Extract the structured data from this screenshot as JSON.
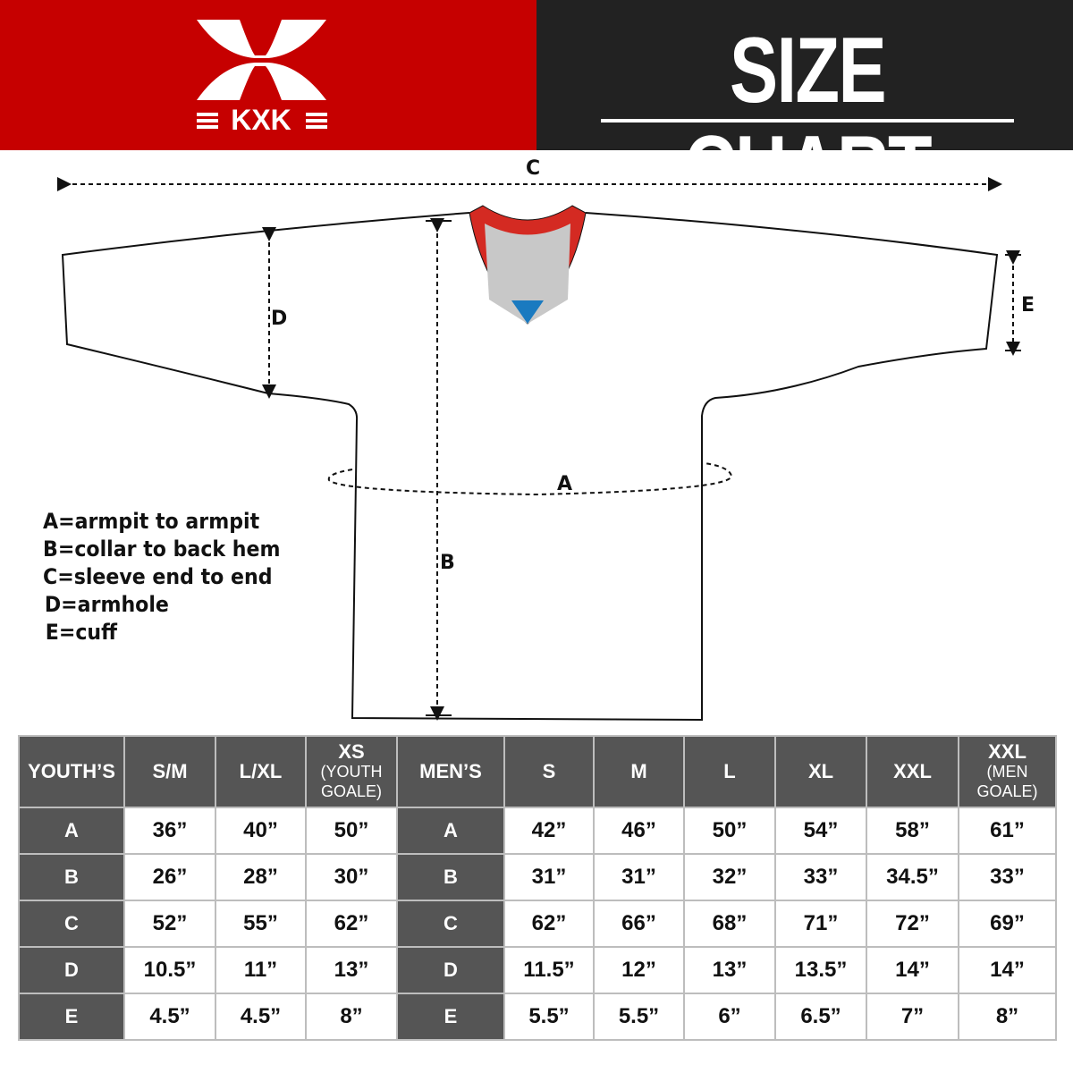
{
  "brand": {
    "logo_text": "KXK",
    "colors": {
      "red": "#c60000",
      "dark": "#222222",
      "table_header": "#555555",
      "collar_red": "#d42a22",
      "collar_gray": "#c8c8c8",
      "collar_blue": "#1a7ac0"
    }
  },
  "header": {
    "title": "SIZE CHART"
  },
  "diagram": {
    "labels": {
      "a": "A",
      "b": "B",
      "c": "C",
      "d": "D",
      "e": "E"
    }
  },
  "legend": [
    "A=armpit to armpit",
    "B=collar to back hem",
    "C=sleeve end to end",
    "D=armhole",
    "E=cuff"
  ],
  "table": {
    "youth_header": "YOUTH’S",
    "youth_sizes": [
      {
        "main": "S/M",
        "sub": ""
      },
      {
        "main": "L/XL",
        "sub": ""
      },
      {
        "main": "XS",
        "sub": "(YOUTH GOALE)"
      }
    ],
    "men_header": "MEN’S",
    "men_sizes": [
      {
        "main": "S",
        "sub": ""
      },
      {
        "main": "M",
        "sub": ""
      },
      {
        "main": "L",
        "sub": ""
      },
      {
        "main": "XL",
        "sub": ""
      },
      {
        "main": "XXL",
        "sub": ""
      },
      {
        "main": "XXL",
        "sub": "(MEN GOALE)"
      }
    ],
    "rows": [
      {
        "label": "A",
        "youth": [
          "36”",
          "40”",
          "50”"
        ],
        "men": [
          "42”",
          "46”",
          "50”",
          "54”",
          "58”",
          "61”"
        ]
      },
      {
        "label": "B",
        "youth": [
          "26”",
          "28”",
          "30”"
        ],
        "men": [
          "31”",
          "31”",
          "32”",
          "33”",
          "34.5”",
          "33”"
        ]
      },
      {
        "label": "C",
        "youth": [
          "52”",
          "55”",
          "62”"
        ],
        "men": [
          "62”",
          "66”",
          "68”",
          "71”",
          "72”",
          "69”"
        ]
      },
      {
        "label": "D",
        "youth": [
          "10.5”",
          "11”",
          "13”"
        ],
        "men": [
          "11.5”",
          "12”",
          "13”",
          "13.5”",
          "14”",
          "14”"
        ]
      },
      {
        "label": "E",
        "youth": [
          "4.5”",
          "4.5”",
          "8”"
        ],
        "men": [
          "5.5”",
          "5.5”",
          "6”",
          "6.5”",
          "7”",
          "8”"
        ]
      }
    ]
  }
}
